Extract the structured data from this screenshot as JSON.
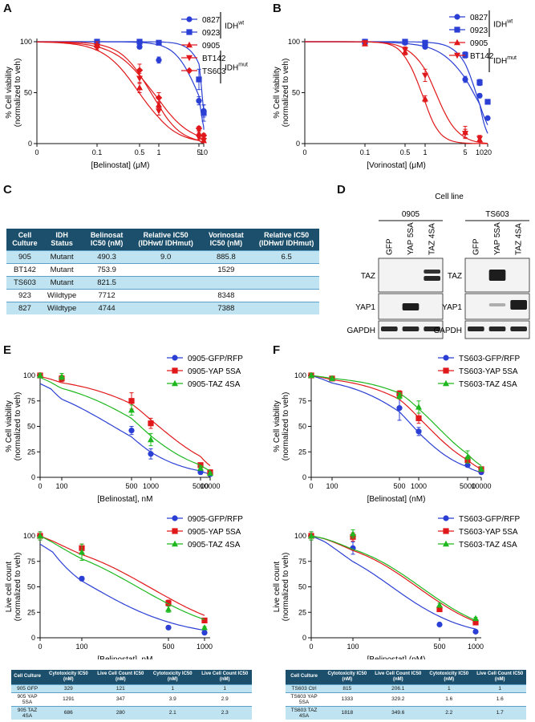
{
  "panels": [
    "A",
    "B",
    "C",
    "D",
    "E",
    "F"
  ],
  "chart_data": [
    {
      "id": "A",
      "type": "line",
      "xlabel": "[Belinostat] (μM)",
      "ylabel": "% Cell viability\n(normalized to veh)",
      "xticks": [
        "0",
        "0.1",
        "0.5",
        "1",
        "5",
        "10"
      ],
      "yticks": [
        "0",
        "50",
        "100"
      ],
      "xscale": "log",
      "x": [
        0.1,
        0.5,
        1,
        5,
        10
      ],
      "series": [
        {
          "name": "0827",
          "marker": "circle",
          "color": "#2b3fd4",
          "values": [
            100,
            95,
            82,
            42,
            32
          ],
          "err": [
            1,
            2,
            3,
            4,
            6
          ],
          "ic50": 4.744,
          "hill": 2.2
        },
        {
          "name": "0923",
          "marker": "square",
          "color": "#2b3fd4",
          "values": [
            100,
            100,
            99,
            63,
            30
          ],
          "err": [
            1,
            1,
            2,
            10,
            8
          ],
          "ic50": 7.712,
          "hill": 3
        },
        {
          "name": "0905",
          "marker": "triangle",
          "color": "#e0181b",
          "values": [
            97,
            55,
            38,
            10,
            3
          ],
          "err": [
            3,
            5,
            3,
            2,
            2
          ],
          "ic50": 0.4903,
          "hill": 1.5
        },
        {
          "name": "BT142",
          "marker": "tri-down",
          "color": "#e0181b",
          "values": [
            95,
            64,
            32,
            6,
            3
          ],
          "err": [
            3,
            5,
            4,
            2,
            1
          ],
          "ic50": 0.7539,
          "hill": 1.8
        },
        {
          "name": "TS603",
          "marker": "diamond",
          "color": "#e0181b",
          "values": [
            95,
            72,
            45,
            15,
            8
          ],
          "err": [
            3,
            6,
            5,
            2,
            2
          ],
          "ic50": 0.8215,
          "hill": 1.4
        }
      ],
      "groups": [
        {
          "label": "IDH",
          "sup": "wt"
        },
        {
          "label": "IDH",
          "sup": "mut"
        }
      ]
    },
    {
      "id": "B",
      "type": "line",
      "xlabel": "[Vorinostat] (μM)",
      "ylabel": "% Cell viability\n(normalized to veh)",
      "xticks": [
        "0",
        "0.1",
        "0.5",
        "1",
        "5",
        "10",
        "20"
      ],
      "yticks": [
        "0",
        "50",
        "100"
      ],
      "xscale": "log",
      "x": [
        0.1,
        0.5,
        1,
        5,
        10,
        20
      ],
      "series": [
        {
          "name": "0827",
          "marker": "circle",
          "color": "#2b3fd4",
          "values": [
            100,
            99,
            95,
            63,
            47,
            25
          ],
          "err": [
            1,
            1,
            2,
            3,
            2,
            1
          ],
          "ic50": 7.388,
          "hill": 1.5
        },
        {
          "name": "0923",
          "marker": "square",
          "color": "#2b3fd4",
          "values": [
            100,
            100,
            99,
            87,
            60,
            41
          ],
          "err": [
            1,
            1,
            1,
            3,
            3,
            2
          ],
          "ic50": 8.348,
          "hill": 2.5
        },
        {
          "name": "0905",
          "marker": "triangle",
          "color": "#e0181b",
          "values": [
            98,
            90,
            44,
            11,
            4,
            null
          ],
          "err": [
            2,
            3,
            3,
            6,
            4,
            0
          ],
          "ic50": 0.8858,
          "hill": 3
        },
        {
          "name": "BT142",
          "marker": "tri-down",
          "color": "#e0181b",
          "values": [
            99,
            92,
            67,
            10,
            5,
            null
          ],
          "err": [
            2,
            3,
            6,
            4,
            3,
            0
          ],
          "ic50": 1.529,
          "hill": 2.3
        }
      ],
      "groups": [
        {
          "label": "IDH",
          "sup": "wt"
        },
        {
          "label": "IDH",
          "sup": "mut"
        }
      ]
    },
    {
      "id": "E-top",
      "type": "line",
      "xlabel": "[Belinostat], nM",
      "ylabel": "% Cell viability\n(normalized to veh)",
      "xticks": [
        "0",
        "100",
        "500",
        "1000",
        "5000",
        "10000"
      ],
      "yticks": [
        "0",
        "25",
        "50",
        "75",
        "100"
      ],
      "x": [
        0,
        100,
        500,
        1000,
        5000,
        10000
      ],
      "series": [
        {
          "name": "0905-GFP/RFP",
          "marker": "circle",
          "color": "#2b3fd4",
          "values": [
            100,
            97,
            46,
            23,
            5,
            3
          ],
          "err": [
            2,
            3,
            4,
            5,
            1,
            1
          ],
          "ic50": 329,
          "hill": 1.0
        },
        {
          "name": "0905-YAP 5SA",
          "marker": "square",
          "color": "#e0181b",
          "values": [
            100,
            97,
            75,
            53,
            12,
            5
          ],
          "err": [
            2,
            3,
            8,
            5,
            2,
            1
          ],
          "ic50": 1291,
          "hill": 1.0
        },
        {
          "name": "0905-TAZ 4SA",
          "marker": "triangle",
          "color": "#1eb81e",
          "values": [
            100,
            99,
            66,
            37,
            9,
            4
          ],
          "err": [
            2,
            3,
            5,
            6,
            2,
            1
          ],
          "ic50": 686,
          "hill": 1.0
        }
      ]
    },
    {
      "id": "F-top",
      "type": "line",
      "xlabel": "[Belinostat] (nM)",
      "ylabel": "% Cell viability\n(normalized to veh)",
      "xticks": [
        "0",
        "100",
        "500",
        "1000",
        "5000",
        "10000"
      ],
      "yticks": [
        "0",
        "25",
        "50",
        "75",
        "100"
      ],
      "x": [
        0,
        100,
        500,
        1000,
        5000,
        10000
      ],
      "series": [
        {
          "name": "TS603-GFP/RFP",
          "marker": "circle",
          "color": "#2b3fd4",
          "values": [
            100,
            97,
            68,
            45,
            12,
            5
          ],
          "err": [
            2,
            2,
            12,
            4,
            2,
            1
          ],
          "ic50": 815,
          "hill": 1.2
        },
        {
          "name": "TS603-YAP 5SA",
          "marker": "square",
          "color": "#e0181b",
          "values": [
            100,
            97,
            82,
            58,
            17,
            8
          ],
          "err": [
            2,
            2,
            3,
            5,
            3,
            2
          ],
          "ic50": 1333,
          "hill": 1.2
        },
        {
          "name": "TS603-TAZ 4SA",
          "marker": "triangle",
          "color": "#1eb81e",
          "values": [
            100,
            97,
            80,
            69,
            20,
            8
          ],
          "err": [
            2,
            2,
            3,
            6,
            6,
            2
          ],
          "ic50": 1818,
          "hill": 1.2
        }
      ]
    },
    {
      "id": "E-bottom",
      "type": "line",
      "xlabel": "[Belinostat], nM",
      "ylabel": "Live cell count\n(normalized to veh)",
      "xticks": [
        "0",
        "100",
        "500",
        "1000"
      ],
      "yticks": [
        "0",
        "25",
        "50",
        "75",
        "100"
      ],
      "x": [
        0,
        100,
        500,
        1000
      ],
      "series": [
        {
          "name": "0905-GFP/RFP",
          "marker": "circle",
          "color": "#2b3fd4",
          "values": [
            100,
            58,
            10,
            5
          ],
          "err": [
            4,
            2,
            1,
            1
          ],
          "ic50": 121,
          "hill": 1.2
        },
        {
          "name": "0905-YAP 5SA",
          "marker": "square",
          "color": "#e0181b",
          "values": [
            100,
            88,
            34,
            17
          ],
          "err": [
            4,
            4,
            3,
            1
          ],
          "ic50": 347,
          "hill": 1.2
        },
        {
          "name": "0905-TAZ 4SA",
          "marker": "triangle",
          "color": "#1eb81e",
          "values": [
            100,
            84,
            28,
            10
          ],
          "err": [
            4,
            8,
            3,
            1
          ],
          "ic50": 280,
          "hill": 1.2
        }
      ]
    },
    {
      "id": "F-bottom",
      "type": "line",
      "xlabel": "[Belinostat] (nM)",
      "ylabel": "Live cell count\n(normalized to veh)",
      "xticks": [
        "0",
        "100",
        "500",
        "1000"
      ],
      "yticks": [
        "0",
        "25",
        "50",
        "75",
        "100"
      ],
      "x": [
        0,
        100,
        500,
        1000
      ],
      "series": [
        {
          "name": "TS603-GFP/RFP",
          "marker": "circle",
          "color": "#2b3fd4",
          "values": [
            100,
            88,
            13,
            6
          ],
          "err": [
            4,
            6,
            1,
            1
          ],
          "ic50": 206,
          "hill": 1.5
        },
        {
          "name": "TS603-YAP 5SA",
          "marker": "square",
          "color": "#e0181b",
          "values": [
            100,
            99,
            28,
            15
          ],
          "err": [
            4,
            4,
            2,
            1
          ],
          "ic50": 329,
          "hill": 1.5
        },
        {
          "name": "TS603-TAZ 4SA",
          "marker": "triangle",
          "color": "#1eb81e",
          "values": [
            100,
            102,
            32,
            19
          ],
          "err": [
            4,
            4,
            2,
            1
          ],
          "ic50": 350,
          "hill": 1.5
        }
      ]
    }
  ],
  "table_c": {
    "headers": [
      "Cell Culture",
      "IDH Status",
      "Belinosat IC50 (nM)",
      "Relative IC50 (IDHwt/ IDHmut)",
      "Vorinostat IC50 (nM)",
      "Relative IC50 (IDHwt/ IDHmut)"
    ],
    "rows": [
      [
        "905",
        "Mutant",
        "490.3",
        "9.0",
        "885.8",
        "6.5"
      ],
      [
        "BT142",
        "Mutant",
        "753.9",
        "",
        "1529",
        ""
      ],
      [
        "TS603",
        "Mutant",
        "821.5",
        "",
        "",
        ""
      ],
      [
        "923",
        "Wildtype",
        "7712",
        "",
        "8348",
        ""
      ],
      [
        "827",
        "Wildtype",
        "4744",
        "",
        "7388",
        ""
      ]
    ]
  },
  "blot_d": {
    "title": "Cell line",
    "left": {
      "cell": "0905",
      "lanes": [
        "GFP",
        "YAP 5SA",
        "TAZ 4SA"
      ],
      "rows": [
        "TAZ",
        "YAP1",
        "GAPDH"
      ]
    },
    "right": {
      "cell": "TS603",
      "lanes": [
        "GFP",
        "YAP 5SA",
        "TAZ 4SA"
      ],
      "rows": [
        "TAZ",
        "YAP1",
        "GAPDH"
      ]
    }
  },
  "table_e": {
    "headers": [
      "Cell Culture",
      "Cytotoxicity IC50 (nM)",
      "Live Cell Count IC50 (nM)",
      "Cytotoxicity IC50 (nM)",
      "Live Cell Count IC50 (nM)"
    ],
    "rows": [
      [
        "905 GFP",
        "329",
        "121",
        "1",
        "1"
      ],
      [
        "905 YAP 5SA",
        "1291",
        "347",
        "3.9",
        "2.9"
      ],
      [
        "905 TAZ 4SA",
        "686",
        "280",
        "2.1",
        "2.3"
      ]
    ]
  },
  "table_f": {
    "headers": [
      "Cell Culture",
      "Cytotoxicity IC50 (nM)",
      "Live Cell Count IC50 (nM)",
      "Cytotoxicity IC50 (nM)",
      "Live Cell Count IC50 (nM)"
    ],
    "rows": [
      [
        "TS603 Ctrl",
        "815",
        "206.1",
        "1",
        "1"
      ],
      [
        "TS603 YAP 5SA",
        "1333",
        "329.2",
        "1.6",
        "1.6"
      ],
      [
        "TS603 TAZ 4SA",
        "1818",
        "349.6",
        "2.2",
        "1.7"
      ]
    ]
  }
}
